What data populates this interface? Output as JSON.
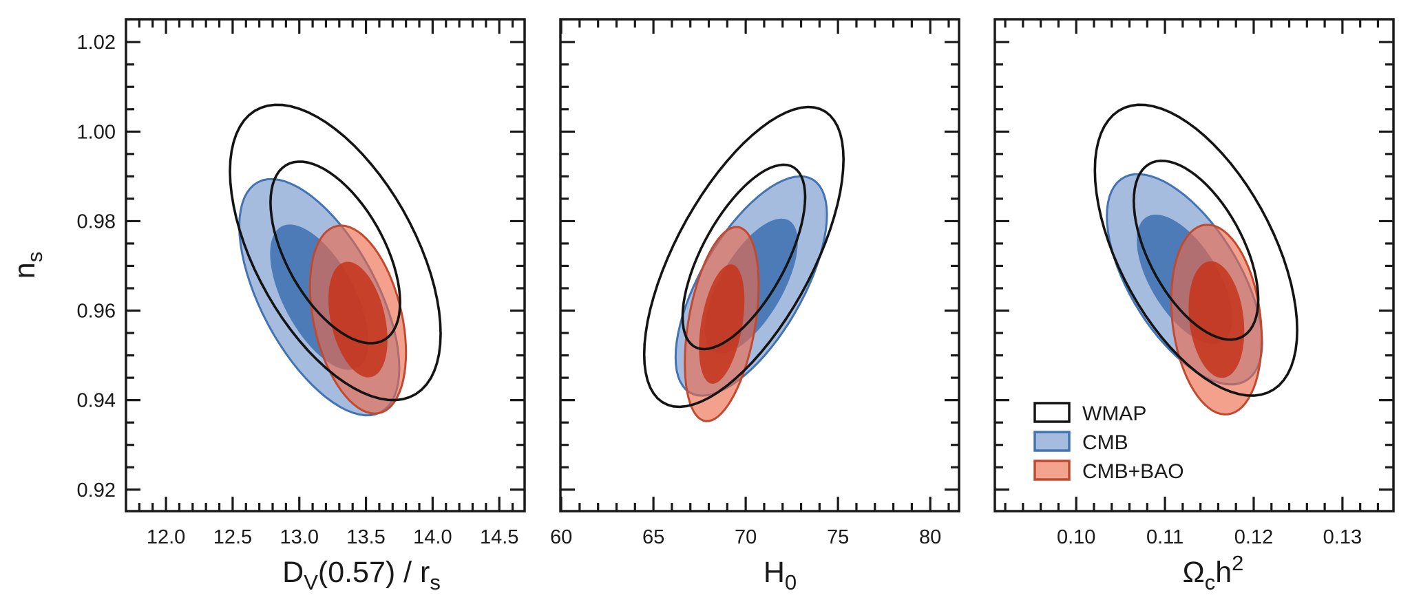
{
  "figure": {
    "background": "#ffffff",
    "text_color": "#1a1a1a"
  },
  "chart_data": {
    "type": "contour-ellipses",
    "description": "Two-dimensional marginalized confidence contours (68% and 95%) for the spectral index n_s versus three derived parameters, for three datasets.",
    "confidence_levels": [
      "68%",
      "95%"
    ],
    "inner_scale": 0.615,
    "ylabel": "n_s",
    "ylabel_parts": [
      {
        "t": "n"
      },
      {
        "t": "s",
        "sub": true
      }
    ],
    "ylim": [
      0.9152,
      1.0251
    ],
    "yticks": [
      0.92,
      0.94,
      0.96,
      0.98,
      1.0,
      1.02
    ],
    "ytick_labels": [
      "0.92",
      "0.94",
      "0.96",
      "0.98",
      "1.00",
      "1.02"
    ],
    "y_minor_step": 0.005,
    "legend": {
      "position": "lower-left of third panel",
      "entries": [
        {
          "label": "WMAP",
          "fill": "#ffffff",
          "stroke": "#141414"
        },
        {
          "label": "CMB",
          "fill": "#a6bcde",
          "stroke": "#4273b3"
        },
        {
          "label": "CMB+BAO",
          "fill": "#f2a48f",
          "stroke": "#c04a30"
        }
      ]
    },
    "styles": {
      "WMAP": {
        "kind": "line",
        "stroke": "#141414",
        "stroke_width": 3.6
      },
      "CMB": {
        "kind": "filled",
        "fill_outer": "#a6bcde",
        "fill_inner": "#4c7bb7",
        "stroke": "#4273b3",
        "stroke_width": 3
      },
      "CMB+BAO": {
        "kind": "filled",
        "fill_outer": "rgba(236,104,73,0.63)",
        "fill_inner": "rgba(197,52,26,0.85)",
        "stroke": "#c04a30",
        "stroke_width": 3
      }
    },
    "panels": [
      {
        "xlabel": "D_V(0.57) / r_s",
        "xlabel_parts": [
          {
            "t": "D"
          },
          {
            "t": "V",
            "sub": true
          },
          {
            "t": "(0.57) / r"
          },
          {
            "t": "s",
            "sub": true
          }
        ],
        "xlim": [
          11.7,
          14.69
        ],
        "xticks": [
          12.0,
          12.5,
          13.0,
          13.5,
          14.0,
          14.5
        ],
        "xtick_labels": [
          "12.0",
          "12.5",
          "13.0",
          "13.5",
          "14.0",
          "14.5"
        ],
        "x_minor_step": 0.1,
        "series": [
          {
            "name": "WMAP",
            "center": [
              13.27,
              0.973
            ],
            "sigma95": [
              0.79,
              0.033
            ],
            "rho": -0.55
          },
          {
            "name": "CMB",
            "center": [
              13.15,
              0.963
            ],
            "sigma95": [
              0.6,
              0.0264
            ],
            "rho": -0.6
          },
          {
            "name": "CMB+BAO",
            "center": [
              13.44,
              0.958
            ],
            "sigma95": [
              0.36,
              0.021
            ],
            "rho": -0.35
          }
        ]
      },
      {
        "xlabel": "H_0",
        "xlabel_parts": [
          {
            "t": "H"
          },
          {
            "t": "0",
            "sub": true
          }
        ],
        "xlim": [
          59.96,
          81.56
        ],
        "xticks": [
          60,
          65,
          70,
          75,
          80
        ],
        "xtick_labels": [
          "60",
          "65",
          "70",
          "75",
          "80"
        ],
        "x_minor_step": 1,
        "series": [
          {
            "name": "WMAP",
            "center": [
              69.9,
              0.972
            ],
            "sigma95": [
              5.4,
              0.0335
            ],
            "rho": 0.65
          },
          {
            "name": "CMB",
            "center": [
              70.3,
              0.9655
            ],
            "sigma95": [
              4.1,
              0.0245
            ],
            "rho": 0.65
          },
          {
            "name": "CMB+BAO",
            "center": [
              68.7,
              0.957
            ],
            "sigma95": [
              2.0,
              0.0217
            ],
            "rho": 0.4
          }
        ]
      },
      {
        "xlabel": "Ω_c h²",
        "xlabel_parts": [
          {
            "t": "Ω"
          },
          {
            "t": "c",
            "sub": true
          },
          {
            "t": "h"
          },
          {
            "t": "2",
            "sup": true
          }
        ],
        "xlim": [
          0.09083,
          0.13575
        ],
        "xticks": [
          0.1,
          0.11,
          0.12,
          0.13
        ],
        "xtick_labels": [
          "0.10",
          "0.11",
          "0.12",
          "0.13"
        ],
        "x_minor_step": 0.002,
        "series": [
          {
            "name": "WMAP",
            "center": [
              0.1135,
              0.9735
            ],
            "sigma95": [
              0.0114,
              0.0325
            ],
            "rho": -0.55
          },
          {
            "name": "CMB",
            "center": [
              0.1122,
              0.967
            ],
            "sigma95": [
              0.00875,
              0.0235
            ],
            "rho": -0.6
          },
          {
            "name": "CMB+BAO",
            "center": [
              0.1158,
              0.958
            ],
            "sigma95": [
              0.0051,
              0.0212
            ],
            "rho": -0.2
          }
        ]
      }
    ]
  }
}
